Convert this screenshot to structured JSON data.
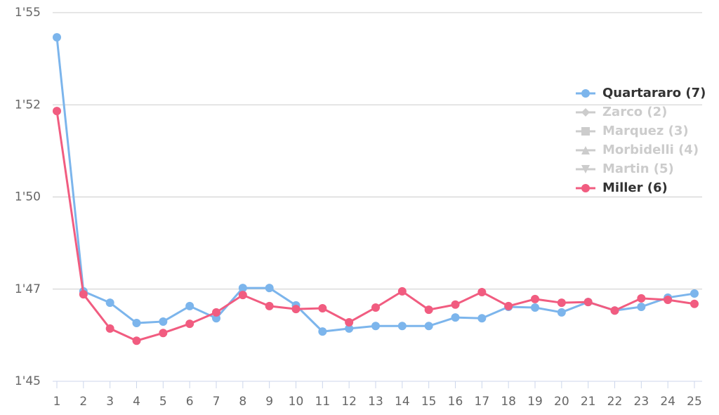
{
  "chart_data": {
    "type": "line",
    "categories": [
      1,
      2,
      3,
      4,
      5,
      6,
      7,
      8,
      9,
      10,
      11,
      12,
      13,
      14,
      15,
      16,
      17,
      18,
      19,
      20,
      21,
      22,
      23,
      24,
      25
    ],
    "series": [
      {
        "name": "Quartararo (7)",
        "color": "#7cb5ec",
        "marker": "circle",
        "values": [
          114.33,
          107.44,
          107.13,
          106.58,
          106.62,
          107.04,
          106.71,
          107.53,
          107.53,
          107.06,
          106.35,
          106.43,
          106.5,
          106.5,
          106.5,
          106.73,
          106.71,
          107.02,
          107.0,
          106.87,
          107.15,
          106.92,
          107.02,
          107.27,
          107.38
        ]
      },
      {
        "name": "Miller (6)",
        "color": "#f15c80",
        "marker": "circle",
        "values": [
          112.33,
          107.36,
          106.43,
          106.1,
          106.31,
          106.56,
          106.87,
          107.34,
          107.04,
          106.96,
          106.98,
          106.6,
          107.0,
          107.44,
          106.94,
          107.08,
          107.42,
          107.04,
          107.23,
          107.13,
          107.15,
          106.92,
          107.25,
          107.21,
          107.1
        ]
      }
    ],
    "hidden_series": [
      {
        "name": "Zarco (2)",
        "marker": "diamond"
      },
      {
        "name": "Marquez (3)",
        "marker": "square"
      },
      {
        "name": "Morbidelli (4)",
        "marker": "triangle"
      },
      {
        "name": "Martin (5)",
        "marker": "triangle-down"
      }
    ],
    "legend_order": [
      "series.0",
      "hidden_series.0",
      "hidden_series.1",
      "hidden_series.2",
      "hidden_series.3",
      "series.1"
    ],
    "hidden_color": "#cccccc",
    "ylim": [
      105,
      115
    ],
    "yticks": [
      {
        "value": 105,
        "label": "1'45"
      },
      {
        "value": 107.5,
        "label": "1'47"
      },
      {
        "value": 110,
        "label": "1'50"
      },
      {
        "value": 112.5,
        "label": "1'52"
      },
      {
        "value": 115,
        "label": "1'55"
      }
    ],
    "grid": true,
    "legend": "right"
  }
}
